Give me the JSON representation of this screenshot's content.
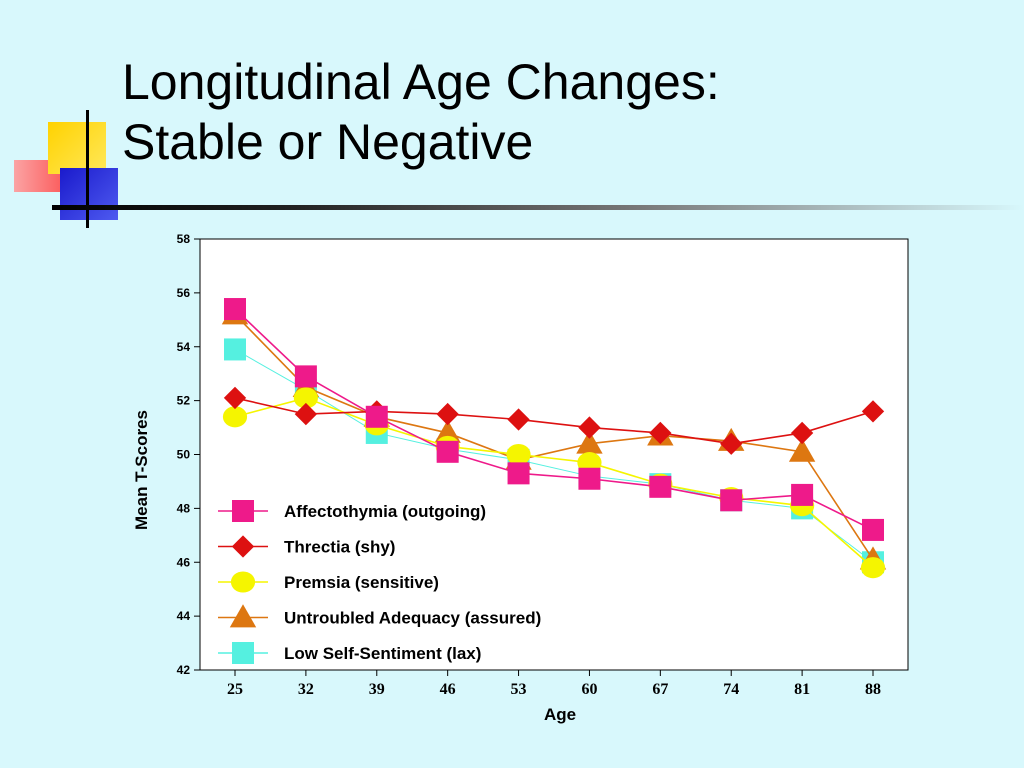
{
  "slide": {
    "title_line1": "Longitudinal Age Changes:",
    "title_line2": "Stable or Negative"
  },
  "chart_data": {
    "type": "line",
    "xlabel": "Age",
    "ylabel": "Mean T-Scores",
    "x": [
      25,
      32,
      39,
      46,
      53,
      60,
      67,
      74,
      81,
      88
    ],
    "ylim": [
      42,
      58
    ],
    "yticks": [
      42,
      44,
      46,
      48,
      50,
      52,
      54,
      56,
      58
    ],
    "grid": false,
    "legend_placement": "lower-left",
    "series": [
      {
        "name": "Affectothymia (outgoing)",
        "color": "#ee1a8a",
        "marker": "square",
        "values": [
          55.4,
          52.9,
          51.4,
          50.1,
          49.3,
          49.1,
          48.8,
          48.3,
          48.5,
          47.2
        ]
      },
      {
        "name": "Threctia (shy)",
        "color": "#dd1111",
        "marker": "diamond",
        "values": [
          52.1,
          51.5,
          51.6,
          51.5,
          51.3,
          51.0,
          50.8,
          50.4,
          50.8,
          51.6
        ]
      },
      {
        "name": "Premsia (sensitive)",
        "color": "#f5f500",
        "marker": "circle",
        "values": [
          51.4,
          52.1,
          51.1,
          50.3,
          50.0,
          49.7,
          48.9,
          48.4,
          48.1,
          45.8
        ]
      },
      {
        "name": "Untroubled Adequacy (assured)",
        "color": "#dd7711",
        "marker": "triangle",
        "values": [
          55.2,
          52.5,
          51.4,
          50.8,
          49.8,
          50.4,
          50.7,
          50.5,
          50.1,
          46.1
        ]
      },
      {
        "name": "Low Self-Sentiment (lax)",
        "color": "#55f0e0",
        "marker": "square",
        "values": [
          53.9,
          52.4,
          50.8,
          50.2,
          49.8,
          49.2,
          48.9,
          48.3,
          48.0,
          46.0
        ]
      }
    ]
  }
}
